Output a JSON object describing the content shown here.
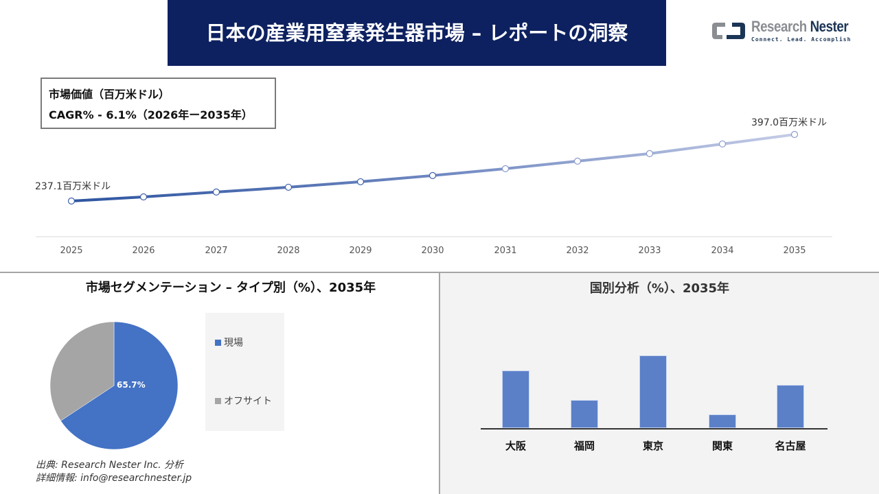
{
  "header": {
    "title": "日本の産業用窒素発生器市場 – レポートの洞察"
  },
  "logo": {
    "name_part1": "Research",
    "name_part2": "Nester",
    "tagline": "Connect. Lead. Accomplish"
  },
  "info_box": {
    "line1": "市場価値（百万米ドル）",
    "line2": "CAGR% - 6.1%（2026年ー2035年）"
  },
  "line_chart": {
    "start_label": "237.1百万米ドル",
    "end_label": "397.0百万米ドル"
  },
  "segmentation": {
    "title": "市場セグメンテーション – タイプ別（%）、2035年",
    "pie_label": "65.7%",
    "legend": [
      {
        "label": "現場",
        "color": "#4472c4"
      },
      {
        "label": "オフサイト",
        "color": "#a5a5a5"
      }
    ]
  },
  "country": {
    "title": "国別分析（%）、2035年"
  },
  "source": {
    "line1": "出典: Research Nester Inc. 分析",
    "line2": "詳細情報: info@researchnester.jp"
  },
  "chart_data": [
    {
      "type": "line",
      "title": "市場価値（百万米ドル）",
      "subtitle": "CAGR% - 6.1%（2026年ー2035年）",
      "x": [
        "2025",
        "2026",
        "2027",
        "2028",
        "2029",
        "2030",
        "2031",
        "2032",
        "2033",
        "2034",
        "2035"
      ],
      "series": [
        {
          "name": "市場価値（百万米ドル）",
          "values": [
            237.1,
            247.0,
            258.7,
            270.2,
            283.4,
            298.3,
            314.8,
            332.9,
            351.1,
            374.2,
            397.0
          ]
        }
      ],
      "annotations": [
        "237.1百万米ドル",
        "397.0百万米ドル"
      ],
      "xlabel": "",
      "ylabel": "",
      "grid": false,
      "legend": "none"
    },
    {
      "type": "pie",
      "title": "市場セグメンテーション – タイプ別（%）、2035年",
      "categories": [
        "現場",
        "オフサイト"
      ],
      "values": [
        65.7,
        34.3
      ],
      "colors": [
        "#4472c4",
        "#a5a5a5"
      ],
      "data_labels": [
        "65.7%",
        ""
      ],
      "legend": "right"
    },
    {
      "type": "bar",
      "title": "国別分析（%）、2035年",
      "categories": [
        "大阪",
        "福岡",
        "東京",
        "関東",
        "名古屋"
      ],
      "values": [
        84,
        41,
        106,
        20,
        63
      ],
      "value_note": "relative bar heights (no axis scale shown)",
      "color": "#5b80c8",
      "grid": false,
      "legend": "none"
    }
  ]
}
